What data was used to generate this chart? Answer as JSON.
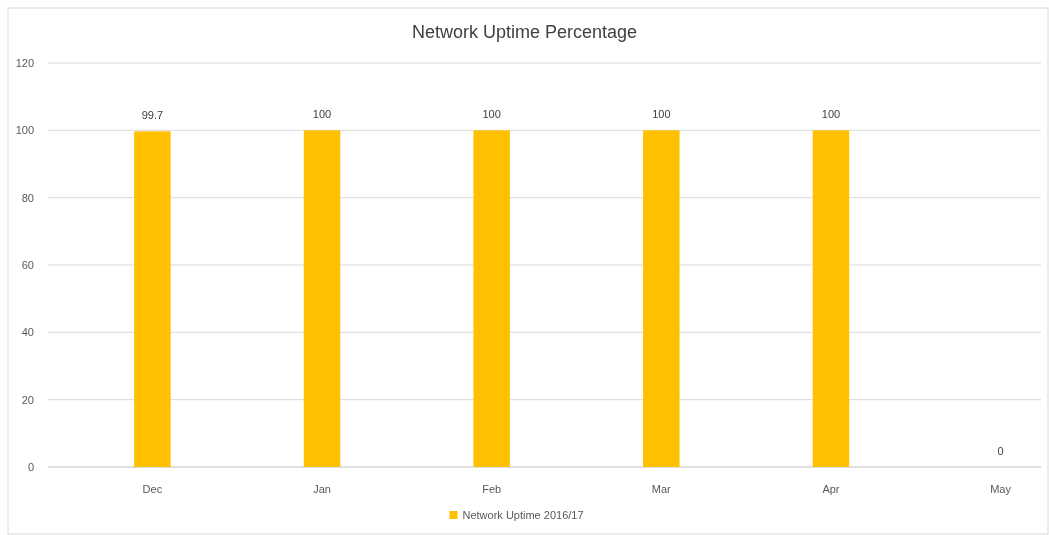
{
  "chart_data": {
    "type": "bar",
    "title": "Network Uptime Percentage",
    "categories": [
      "Dec",
      "Jan",
      "Feb",
      "Mar",
      "Apr",
      "May"
    ],
    "series": [
      {
        "name": "Network Uptime 2016/17",
        "color": "#ffc000",
        "values": [
          99.7,
          100,
          100,
          100,
          100,
          0
        ]
      }
    ],
    "ylim": [
      0,
      120
    ],
    "yticks": [
      0,
      20,
      40,
      60,
      80,
      100,
      120
    ],
    "grid": "y",
    "legend": "bottom",
    "data_labels": true
  }
}
